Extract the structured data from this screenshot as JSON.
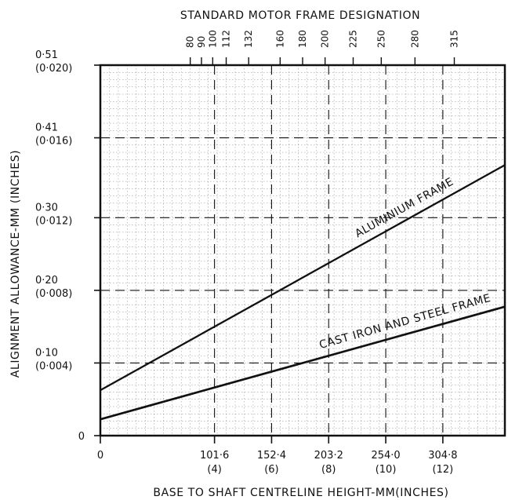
{
  "chart_data": {
    "type": "line",
    "title": "STANDARD MOTOR FRAME DESIGNATION",
    "xlabel": "BASE TO SHAFT CENTRELINE HEIGHT-MM(INCHES)",
    "ylabel": "ALIGNMENT ALLOWANCE-MM (INCHES)",
    "xlim": [
      0,
      360
    ],
    "ylim": [
      0,
      0.51
    ],
    "grid": true,
    "legend": "none",
    "x_ticks": [
      {
        "value": 0,
        "label_top": "0",
        "label_bottom": ""
      },
      {
        "value": 101.6,
        "label_top": "101·6",
        "label_bottom": "(4)"
      },
      {
        "value": 152.4,
        "label_top": "152·4",
        "label_bottom": "(6)"
      },
      {
        "value": 203.2,
        "label_top": "203·2",
        "label_bottom": "(8)"
      },
      {
        "value": 254.0,
        "label_top": "254·0",
        "label_bottom": "(10)"
      },
      {
        "value": 304.8,
        "label_top": "304·8",
        "label_bottom": "(12)"
      }
    ],
    "y_ticks": [
      {
        "value": 0,
        "label_top": "0",
        "label_bottom": ""
      },
      {
        "value": 0.1,
        "label_top": "0·10",
        "label_bottom": "(0·004)"
      },
      {
        "value": 0.2,
        "label_top": "0·20",
        "label_bottom": "(0·008)"
      },
      {
        "value": 0.3,
        "label_top": "0·30",
        "label_bottom": "(0·012)"
      },
      {
        "value": 0.41,
        "label_top": "0·41",
        "label_bottom": "(0·016)"
      },
      {
        "value": 0.51,
        "label_top": "0·51",
        "label_bottom": "(0·020)"
      }
    ],
    "top_axis": {
      "labels": [
        "80",
        "90",
        "100",
        "112",
        "132",
        "160",
        "180",
        "200",
        "225",
        "250",
        "280",
        "315"
      ],
      "values": [
        80,
        90,
        100,
        112,
        132,
        160,
        180,
        200,
        225,
        250,
        280,
        315
      ]
    },
    "series": [
      {
        "name": "ALUMINIUM FRAME",
        "x": [
          0,
          360
        ],
        "y": [
          0.0625,
          0.3725
        ]
      },
      {
        "name": "CAST IRON AND STEEL FRAME",
        "x": [
          0,
          360
        ],
        "y": [
          0.0225,
          0.1775
        ]
      }
    ],
    "colors": {
      "line": "#111111",
      "grid": "#111111",
      "background": "#ffffff"
    }
  }
}
